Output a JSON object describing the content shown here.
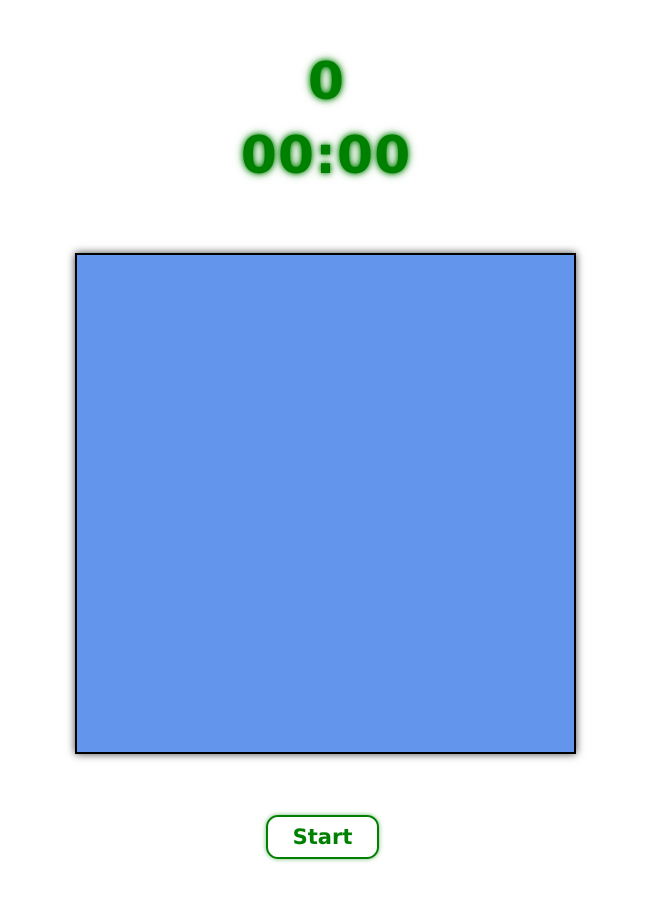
{
  "game": {
    "score": "0",
    "timer": "00:00",
    "start_label": "Start"
  },
  "colors": {
    "accent": "#008000",
    "board": "#6495ED",
    "board_border": "#000000",
    "background": "#FFFFFF"
  }
}
